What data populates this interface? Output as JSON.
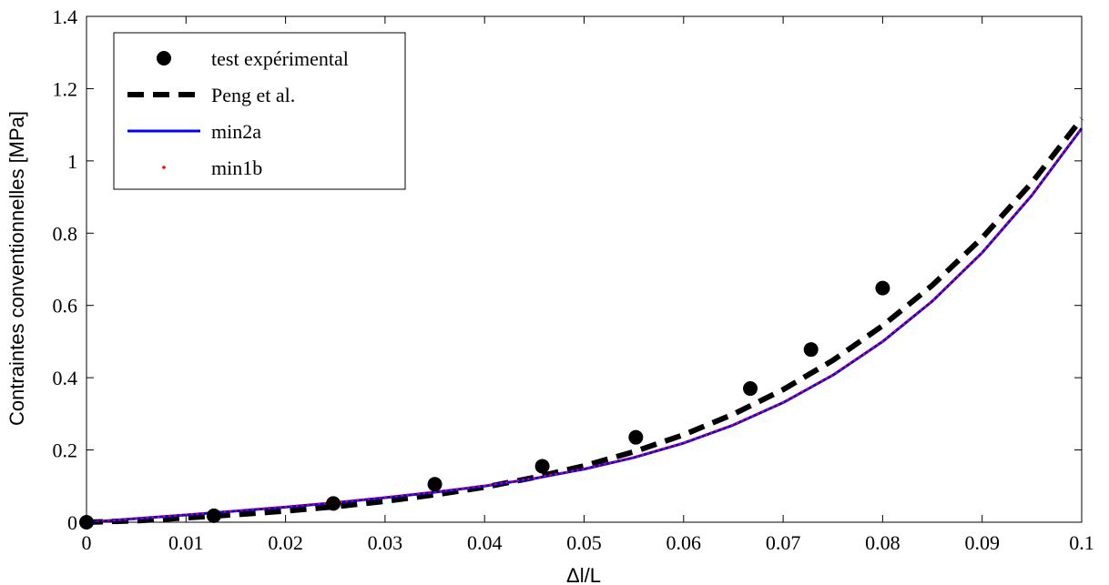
{
  "chart_data": {
    "type": "line",
    "xlabel": "Δl/L",
    "ylabel": "Contraintes conventionnelles [MPa]",
    "xlim": [
      0,
      0.1
    ],
    "ylim": [
      0,
      1.4
    ],
    "xticks": [
      "0",
      "0.01",
      "0.02",
      "0.03",
      "0.04",
      "0.05",
      "0.06",
      "0.07",
      "0.08",
      "0.09",
      "0.1"
    ],
    "yticks": [
      "0",
      "0.2",
      "0.4",
      "0.6",
      "0.8",
      "1",
      "1.2",
      "1.4"
    ],
    "grid": false,
    "legend_position": "top-left",
    "series": [
      {
        "name": "test expérimental",
        "style": "markers",
        "color": "#000000",
        "x": [
          0,
          0.0128,
          0.0248,
          0.035,
          0.0458,
          0.0552,
          0.0667,
          0.0728,
          0.08
        ],
        "y": [
          0,
          0.018,
          0.052,
          0.105,
          0.155,
          0.235,
          0.37,
          0.478,
          0.648
        ]
      },
      {
        "name": "Peng et al.",
        "style": "dashed",
        "color": "#000000",
        "x": [
          0,
          0.005,
          0.01,
          0.015,
          0.02,
          0.025,
          0.03,
          0.035,
          0.04,
          0.045,
          0.05,
          0.055,
          0.06,
          0.065,
          0.07,
          0.075,
          0.08,
          0.085,
          0.09,
          0.095,
          0.1
        ],
        "y": [
          0,
          0.004,
          0.012,
          0.021,
          0.031,
          0.043,
          0.058,
          0.076,
          0.097,
          0.124,
          0.156,
          0.195,
          0.242,
          0.299,
          0.367,
          0.448,
          0.544,
          0.656,
          0.787,
          0.94,
          1.117
        ]
      },
      {
        "name": "min2a",
        "style": "solid",
        "color": "#0000ff",
        "x": [
          0,
          0.005,
          0.01,
          0.015,
          0.02,
          0.025,
          0.03,
          0.035,
          0.04,
          0.045,
          0.05,
          0.055,
          0.06,
          0.065,
          0.07,
          0.075,
          0.08,
          0.085,
          0.09,
          0.095,
          0.1
        ],
        "y": [
          0,
          0.01,
          0.02,
          0.031,
          0.042,
          0.054,
          0.068,
          0.083,
          0.1,
          0.121,
          0.147,
          0.179,
          0.219,
          0.269,
          0.331,
          0.407,
          0.5,
          0.612,
          0.746,
          0.905,
          1.09
        ]
      },
      {
        "name": "min1b",
        "style": "dotted",
        "color": "#ff0000",
        "x": [
          0,
          0.005,
          0.01,
          0.015,
          0.02,
          0.025,
          0.03,
          0.035,
          0.04,
          0.045,
          0.05,
          0.055,
          0.06,
          0.065,
          0.07,
          0.075,
          0.08,
          0.085,
          0.09,
          0.095,
          0.1
        ],
        "y": [
          0,
          0.01,
          0.021,
          0.032,
          0.043,
          0.055,
          0.069,
          0.084,
          0.101,
          0.122,
          0.148,
          0.18,
          0.22,
          0.27,
          0.332,
          0.408,
          0.501,
          0.613,
          0.747,
          0.906,
          1.092
        ]
      }
    ]
  }
}
